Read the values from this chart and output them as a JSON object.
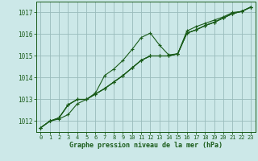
{
  "xlabel": "Graphe pression niveau de la mer (hPa)",
  "bg_color": "#cce8e8",
  "grid_color": "#99bbbb",
  "line_color": "#1a5c1a",
  "xlim": [
    -0.5,
    23.5
  ],
  "ylim": [
    1011.5,
    1017.5
  ],
  "yticks": [
    1012,
    1013,
    1014,
    1015,
    1016,
    1017
  ],
  "xticks": [
    0,
    1,
    2,
    3,
    4,
    5,
    6,
    7,
    8,
    9,
    10,
    11,
    12,
    13,
    14,
    15,
    16,
    17,
    18,
    19,
    20,
    21,
    22,
    23
  ],
  "lines": [
    [
      1011.7,
      1012.0,
      1012.1,
      1012.3,
      1012.8,
      1013.0,
      1013.3,
      1014.1,
      1014.4,
      1014.8,
      1015.3,
      1015.85,
      1016.05,
      1015.5,
      1015.05,
      1015.1,
      1016.15,
      1016.35,
      1016.5,
      1016.65,
      1016.8,
      1017.0,
      1017.05,
      1017.25
    ],
    [
      1011.7,
      1012.0,
      1012.15,
      1012.75,
      1013.0,
      1013.0,
      1013.25,
      1013.5,
      1013.8,
      1014.1,
      1014.45,
      1014.8,
      1015.0,
      1015.0,
      1015.0,
      1015.1,
      1016.05,
      1016.2,
      1016.4,
      1016.55,
      1016.75,
      1016.95,
      1017.05,
      1017.25
    ],
    [
      1011.7,
      1012.0,
      1012.15,
      1012.75,
      1013.0,
      1013.0,
      1013.25,
      1013.5,
      1013.8,
      1014.1,
      1014.45,
      1014.8,
      1015.0,
      1015.0,
      1015.0,
      1015.1,
      1016.05,
      1016.2,
      1016.4,
      1016.55,
      1016.75,
      1016.95,
      1017.05,
      1017.25
    ],
    [
      1011.7,
      1012.0,
      1012.15,
      1012.75,
      1013.0,
      1013.0,
      1013.25,
      1013.5,
      1013.8,
      1014.1,
      1014.45,
      1014.8,
      1015.0,
      1015.0,
      1015.0,
      1015.1,
      1016.05,
      1016.2,
      1016.4,
      1016.55,
      1016.75,
      1016.95,
      1017.05,
      1017.25
    ]
  ]
}
